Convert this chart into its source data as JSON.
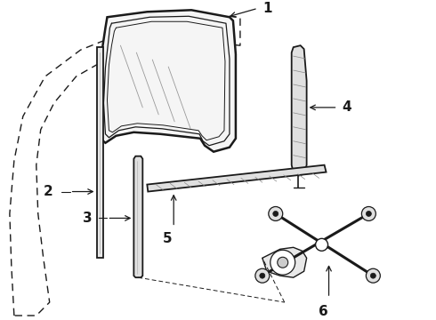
{
  "background_color": "#ffffff",
  "line_color": "#1a1a1a",
  "fig_width": 4.9,
  "fig_height": 3.6,
  "dpi": 100,
  "label_fontsize": 11,
  "label_fontweight": "bold",
  "lw_main": 1.3,
  "lw_thick": 1.8,
  "lw_thin": 0.7
}
